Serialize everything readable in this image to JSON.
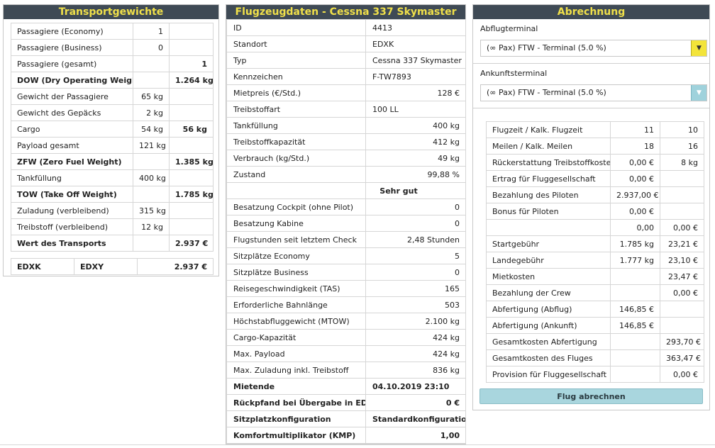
{
  "transport": {
    "title": "Transportgewichte",
    "rows": [
      {
        "label": "Passagiere (Economy)",
        "value": "1",
        "total": ""
      },
      {
        "label": "Passagiere (Business)",
        "value": "0",
        "total": ""
      },
      {
        "label": "Passagiere (gesamt)",
        "value": "",
        "total": "1"
      },
      {
        "label": "DOW (Dry Operating Weight)",
        "value": "",
        "total": "1.264 kg"
      },
      {
        "label": "Gewicht der Passagiere",
        "value": "65 kg",
        "total": ""
      },
      {
        "label": "Gewicht des Gepäcks",
        "value": "2 kg",
        "total": ""
      },
      {
        "label": "Cargo",
        "value": "54 kg",
        "total": "56 kg"
      },
      {
        "label": "Payload gesamt",
        "value": "121 kg",
        "total": ""
      },
      {
        "label": "ZFW (Zero Fuel Weight)",
        "value": "",
        "total": "1.385 kg"
      },
      {
        "label": "Tankfüllung",
        "value": "400 kg",
        "total": ""
      },
      {
        "label": "TOW (Take Off Weight)",
        "value": "",
        "total": "1.785 kg"
      },
      {
        "label": "Zuladung (verbleibend)",
        "value": "315 kg",
        "total": ""
      },
      {
        "label": "Treibstoff (verbleibend)",
        "value": "12 kg",
        "total": ""
      },
      {
        "label": "Wert des Transports",
        "value": "",
        "total": "2.937 €"
      }
    ],
    "route": {
      "from": "EDXK",
      "to": "EDXY",
      "value": "2.937 €"
    }
  },
  "aircraft": {
    "title": "Flugzeugdaten - Cessna 337 Skymaster",
    "rows": [
      {
        "label": "ID",
        "value": "4413"
      },
      {
        "label": "Standort",
        "value": "EDXK"
      },
      {
        "label": "Typ",
        "value": "Cessna 337 Skymaster"
      },
      {
        "label": "Kennzeichen",
        "value": "F-TW7893"
      },
      {
        "label": "Mietpreis (€/Std.)",
        "value": "128 €"
      },
      {
        "label": "Treibstoffart",
        "value": "100 LL"
      },
      {
        "label": "Tankfüllung",
        "value": "400 kg"
      },
      {
        "label": "Treibstoffkapazität",
        "value": "412 kg"
      },
      {
        "label": "Verbrauch (kg/Std.)",
        "value": "49 kg"
      },
      {
        "label": "Zustand",
        "value": "99,88 %"
      },
      {
        "label": "",
        "value": "Sehr gut"
      },
      {
        "label": "Besatzung Cockpit (ohne Pilot)",
        "value": "0"
      },
      {
        "label": "Besatzung Kabine",
        "value": "0"
      },
      {
        "label": "Flugstunden seit letztem Check",
        "value": "2,48 Stunden"
      },
      {
        "label": "Sitzplätze Economy",
        "value": "5"
      },
      {
        "label": "Sitzplätze Business",
        "value": "0"
      },
      {
        "label": "Reisegeschwindigkeit (TAS)",
        "value": "165"
      },
      {
        "label": "Erforderliche Bahnlänge",
        "value": "503"
      },
      {
        "label": "Höchstabfluggewicht (MTOW)",
        "value": "2.100 kg"
      },
      {
        "label": "Cargo-Kapazität",
        "value": "424 kg"
      },
      {
        "label": "Max. Payload",
        "value": "424 kg"
      },
      {
        "label": "Max. Zuladung inkl. Treibstoff",
        "value": "836 kg"
      },
      {
        "label": "Mietende",
        "value": "04.10.2019 23:10"
      },
      {
        "label": "Rückpfand bei Übergabe in EDDH",
        "value": "0 €"
      },
      {
        "label": "Sitzplatzkonfiguration",
        "value": "Standardkonfiguration"
      },
      {
        "label": "Komfortmultiplikator (KMP)",
        "value": "1,00"
      }
    ]
  },
  "billing": {
    "title": "Abrechnung",
    "departure_label": "Abflugterminal",
    "departure_value": "(∞ Pax) FTW - Terminal (5.0 %)",
    "arrival_label": "Ankunftsterminal",
    "arrival_value": "(∞ Pax) FTW - Terminal (5.0 %)",
    "rows": [
      {
        "label": "Flugzeit / Kalk. Flugzeit",
        "a": "11",
        "b": "10"
      },
      {
        "label": "Meilen / Kalk. Meilen",
        "a": "18",
        "b": "16"
      },
      {
        "label": "Rückerstattung Treibstoffkosten",
        "a": "0,00 €",
        "b": "8 kg"
      },
      {
        "label": "Ertrag für Fluggesellschaft",
        "a": "0,00 €",
        "b": ""
      },
      {
        "label": "Bezahlung des Piloten",
        "a": "2.937,00 €",
        "b": ""
      },
      {
        "label": "Bonus für Piloten",
        "a": "0,00 €",
        "b": ""
      },
      {
        "label": "",
        "a": "0,00",
        "b": "0,00 €"
      },
      {
        "label": "Startgebühr",
        "a": "1.785 kg",
        "b": "23,21 €"
      },
      {
        "label": "Landegebühr",
        "a": "1.777 kg",
        "b": "23,10 €"
      },
      {
        "label": "Mietkosten",
        "a": "",
        "b": "23,47 €"
      },
      {
        "label": "Bezahlung der Crew",
        "a": "",
        "b": "0,00 €"
      },
      {
        "label": "Abfertigung (Abflug)",
        "a": "146,85 €",
        "b": ""
      },
      {
        "label": "Abfertigung (Ankunft)",
        "a": "146,85 €",
        "b": ""
      },
      {
        "label": "Gesamtkosten Abfertigung",
        "a": "",
        "b": "293,70 €"
      },
      {
        "label": "Gesamtkosten des Fluges",
        "a": "",
        "b": "363,47 €"
      },
      {
        "label": "Provision für Fluggesellschaft",
        "a": "",
        "b": "0,00 €"
      }
    ],
    "submit_label": "Flug abrechnen",
    "accent_yellow": "#f3e43a",
    "accent_blue": "#a9d6de",
    "header_bg": "#3f4a55",
    "header_text": "#f0e04a"
  }
}
